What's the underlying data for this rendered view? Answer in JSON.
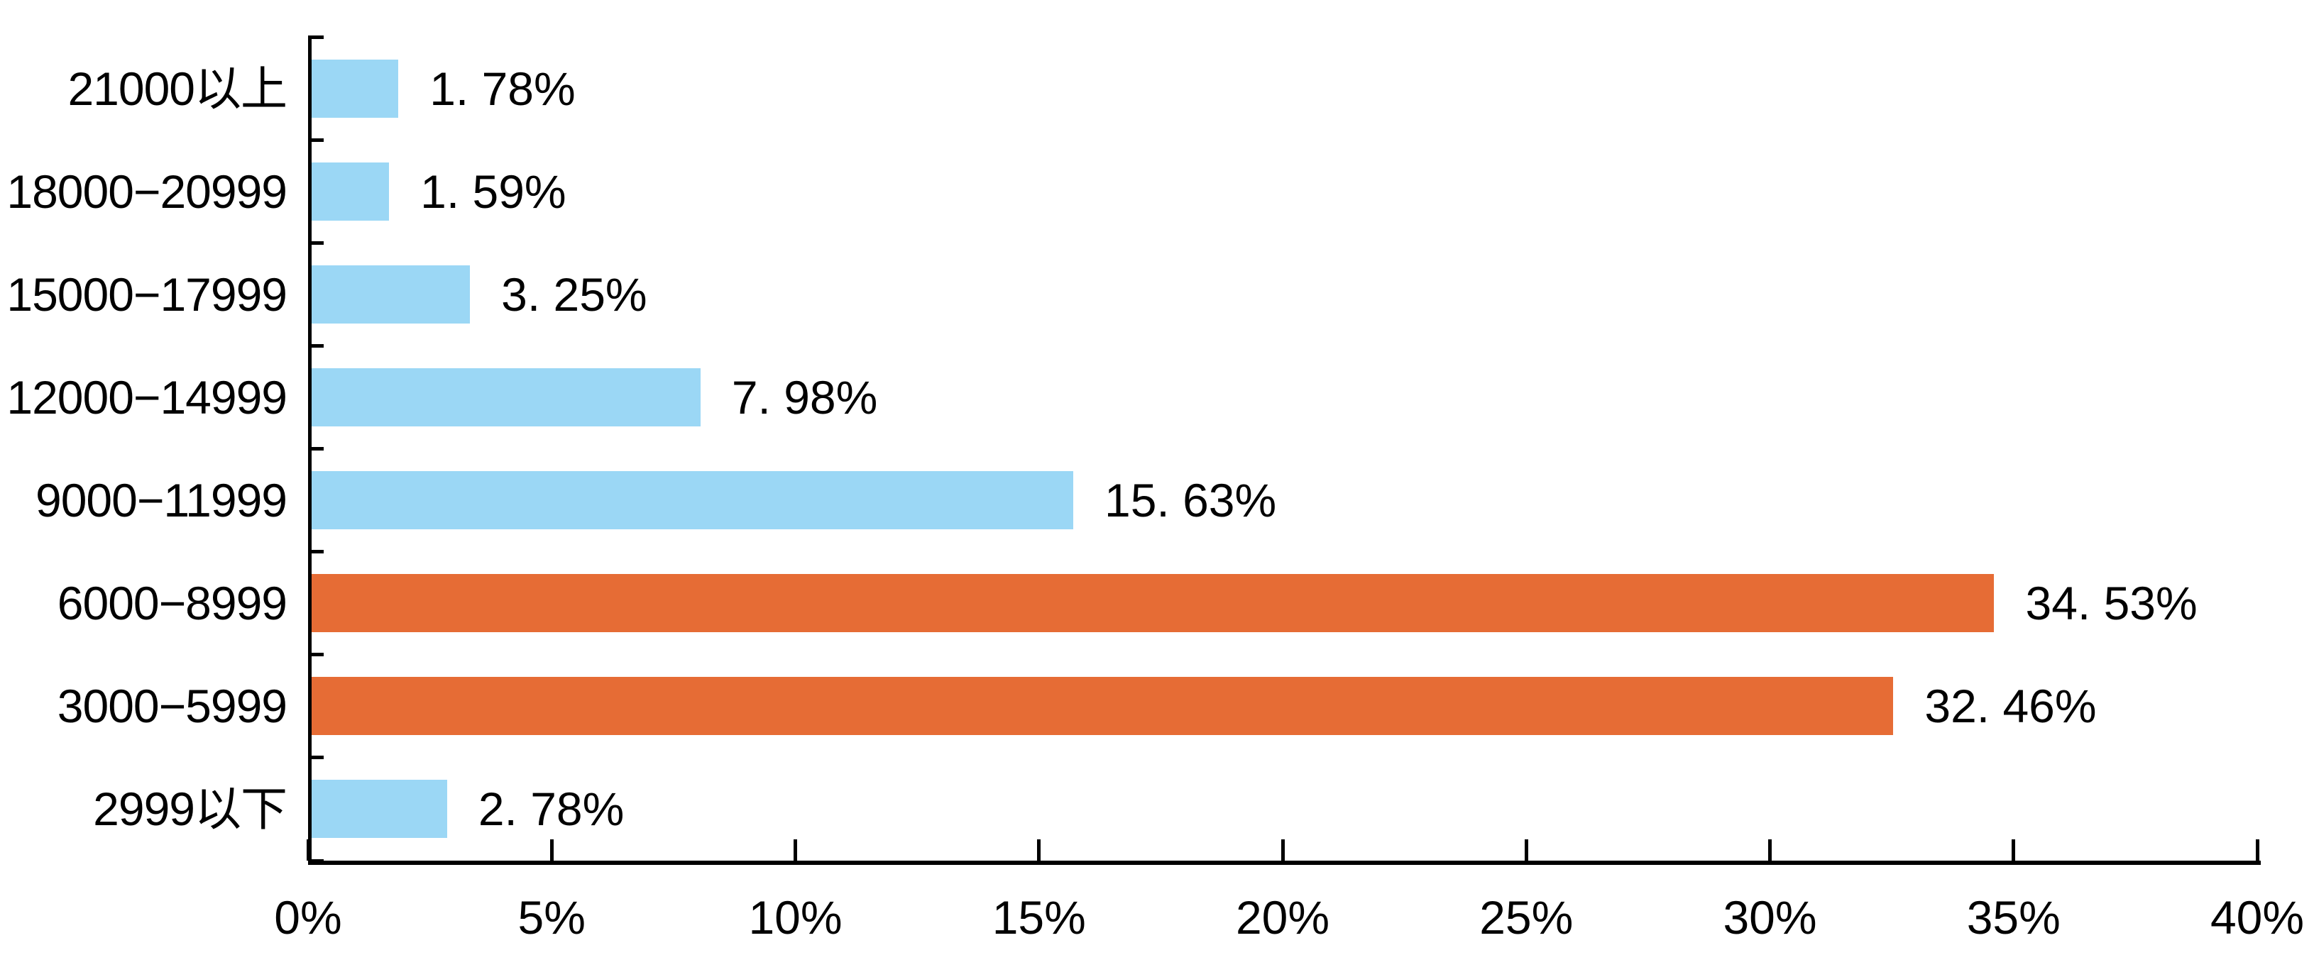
{
  "page": {
    "background_color": "#ffffff",
    "text_color": "#000000",
    "axis_color": "#000000"
  },
  "chart_data": {
    "type": "bar",
    "orientation": "horizontal",
    "title": "",
    "xlabel": "",
    "ylabel": "",
    "categories": [
      "21000以上",
      "18000−20999",
      "15000−17999",
      "12000−14999",
      "9000−11999",
      "6000−8999",
      "3000−5999",
      "2999以下"
    ],
    "values": [
      1.78,
      1.59,
      3.25,
      7.98,
      15.63,
      34.53,
      32.46,
      2.78
    ],
    "value_labels": [
      "1. 78%",
      "1. 59%",
      "3. 25%",
      "7. 98%",
      "15. 63%",
      "34. 53%",
      "32. 46%",
      "2. 78%"
    ],
    "bar_colors": [
      "#9BD7F5",
      "#9BD7F5",
      "#9BD7F5",
      "#9BD7F5",
      "#9BD7F5",
      "#E66C35",
      "#E66C35",
      "#9BD7F5"
    ],
    "default_bar_color": "#9BD7F5",
    "highlight_bar_color": "#E66C35",
    "highlighted_categories": [
      "6000−8999",
      "3000−5999"
    ],
    "xlim": [
      0,
      40
    ],
    "x_tick_labels": [
      "0%",
      "5%",
      "10%",
      "15%",
      "20%",
      "25%",
      "30%",
      "35%",
      "40%"
    ],
    "x_tick_step_percent": 5,
    "grid": false,
    "legend": "none",
    "data_labels_position": "outside-end"
  }
}
